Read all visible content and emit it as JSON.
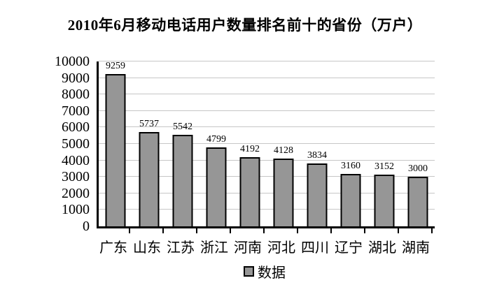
{
  "chart_data": {
    "type": "bar",
    "title": "2010年6月移动电话用户数量排名前十的省份（万户）",
    "categories": [
      "广东",
      "山东",
      "江苏",
      "浙江",
      "河南",
      "河北",
      "四川",
      "辽宁",
      "湖北",
      "湖南"
    ],
    "values": [
      9259,
      5737,
      5542,
      4799,
      4192,
      4128,
      3834,
      3160,
      3152,
      3000
    ],
    "xlabel": "",
    "ylabel": "",
    "ylim": [
      0,
      10000
    ],
    "y_tick_step": 1000,
    "y_tick_labels": [
      "0",
      "1000",
      "2000",
      "3000",
      "4000",
      "5000",
      "6000",
      "7000",
      "8000",
      "9000",
      "10000"
    ],
    "grid": true,
    "legend_label": "数据",
    "legend_position": "bottom",
    "colors": {
      "bar_fill": "#969696",
      "bar_border": "#000000",
      "gridline": "#c6c6c6",
      "axis": "#000000",
      "background": "#ffffff",
      "text": "#000000"
    }
  }
}
